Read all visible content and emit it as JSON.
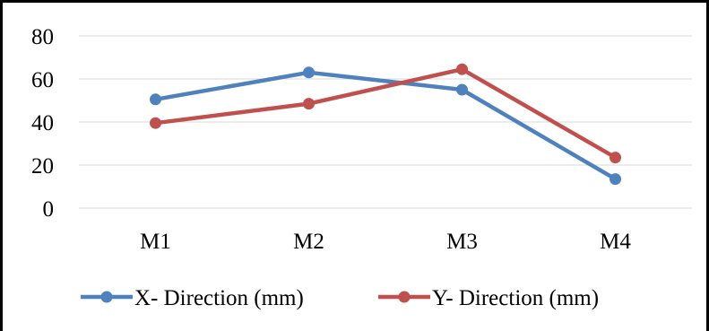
{
  "chart_data": {
    "type": "line",
    "categories": [
      "M1",
      "M2",
      "M3",
      "M4"
    ],
    "series": [
      {
        "name": "X- Direction (mm)",
        "values": [
          50.5,
          63,
          55,
          13.5
        ],
        "color": "#4F81BD"
      },
      {
        "name": "Y- Direction (mm)",
        "values": [
          39.5,
          48.5,
          64.5,
          23.5
        ],
        "color": "#C0504D"
      }
    ],
    "ylim": [
      0,
      80
    ],
    "yticks": [
      0,
      20,
      40,
      60,
      80
    ],
    "grid": true,
    "legend_position": "bottom",
    "markers": "circle"
  }
}
